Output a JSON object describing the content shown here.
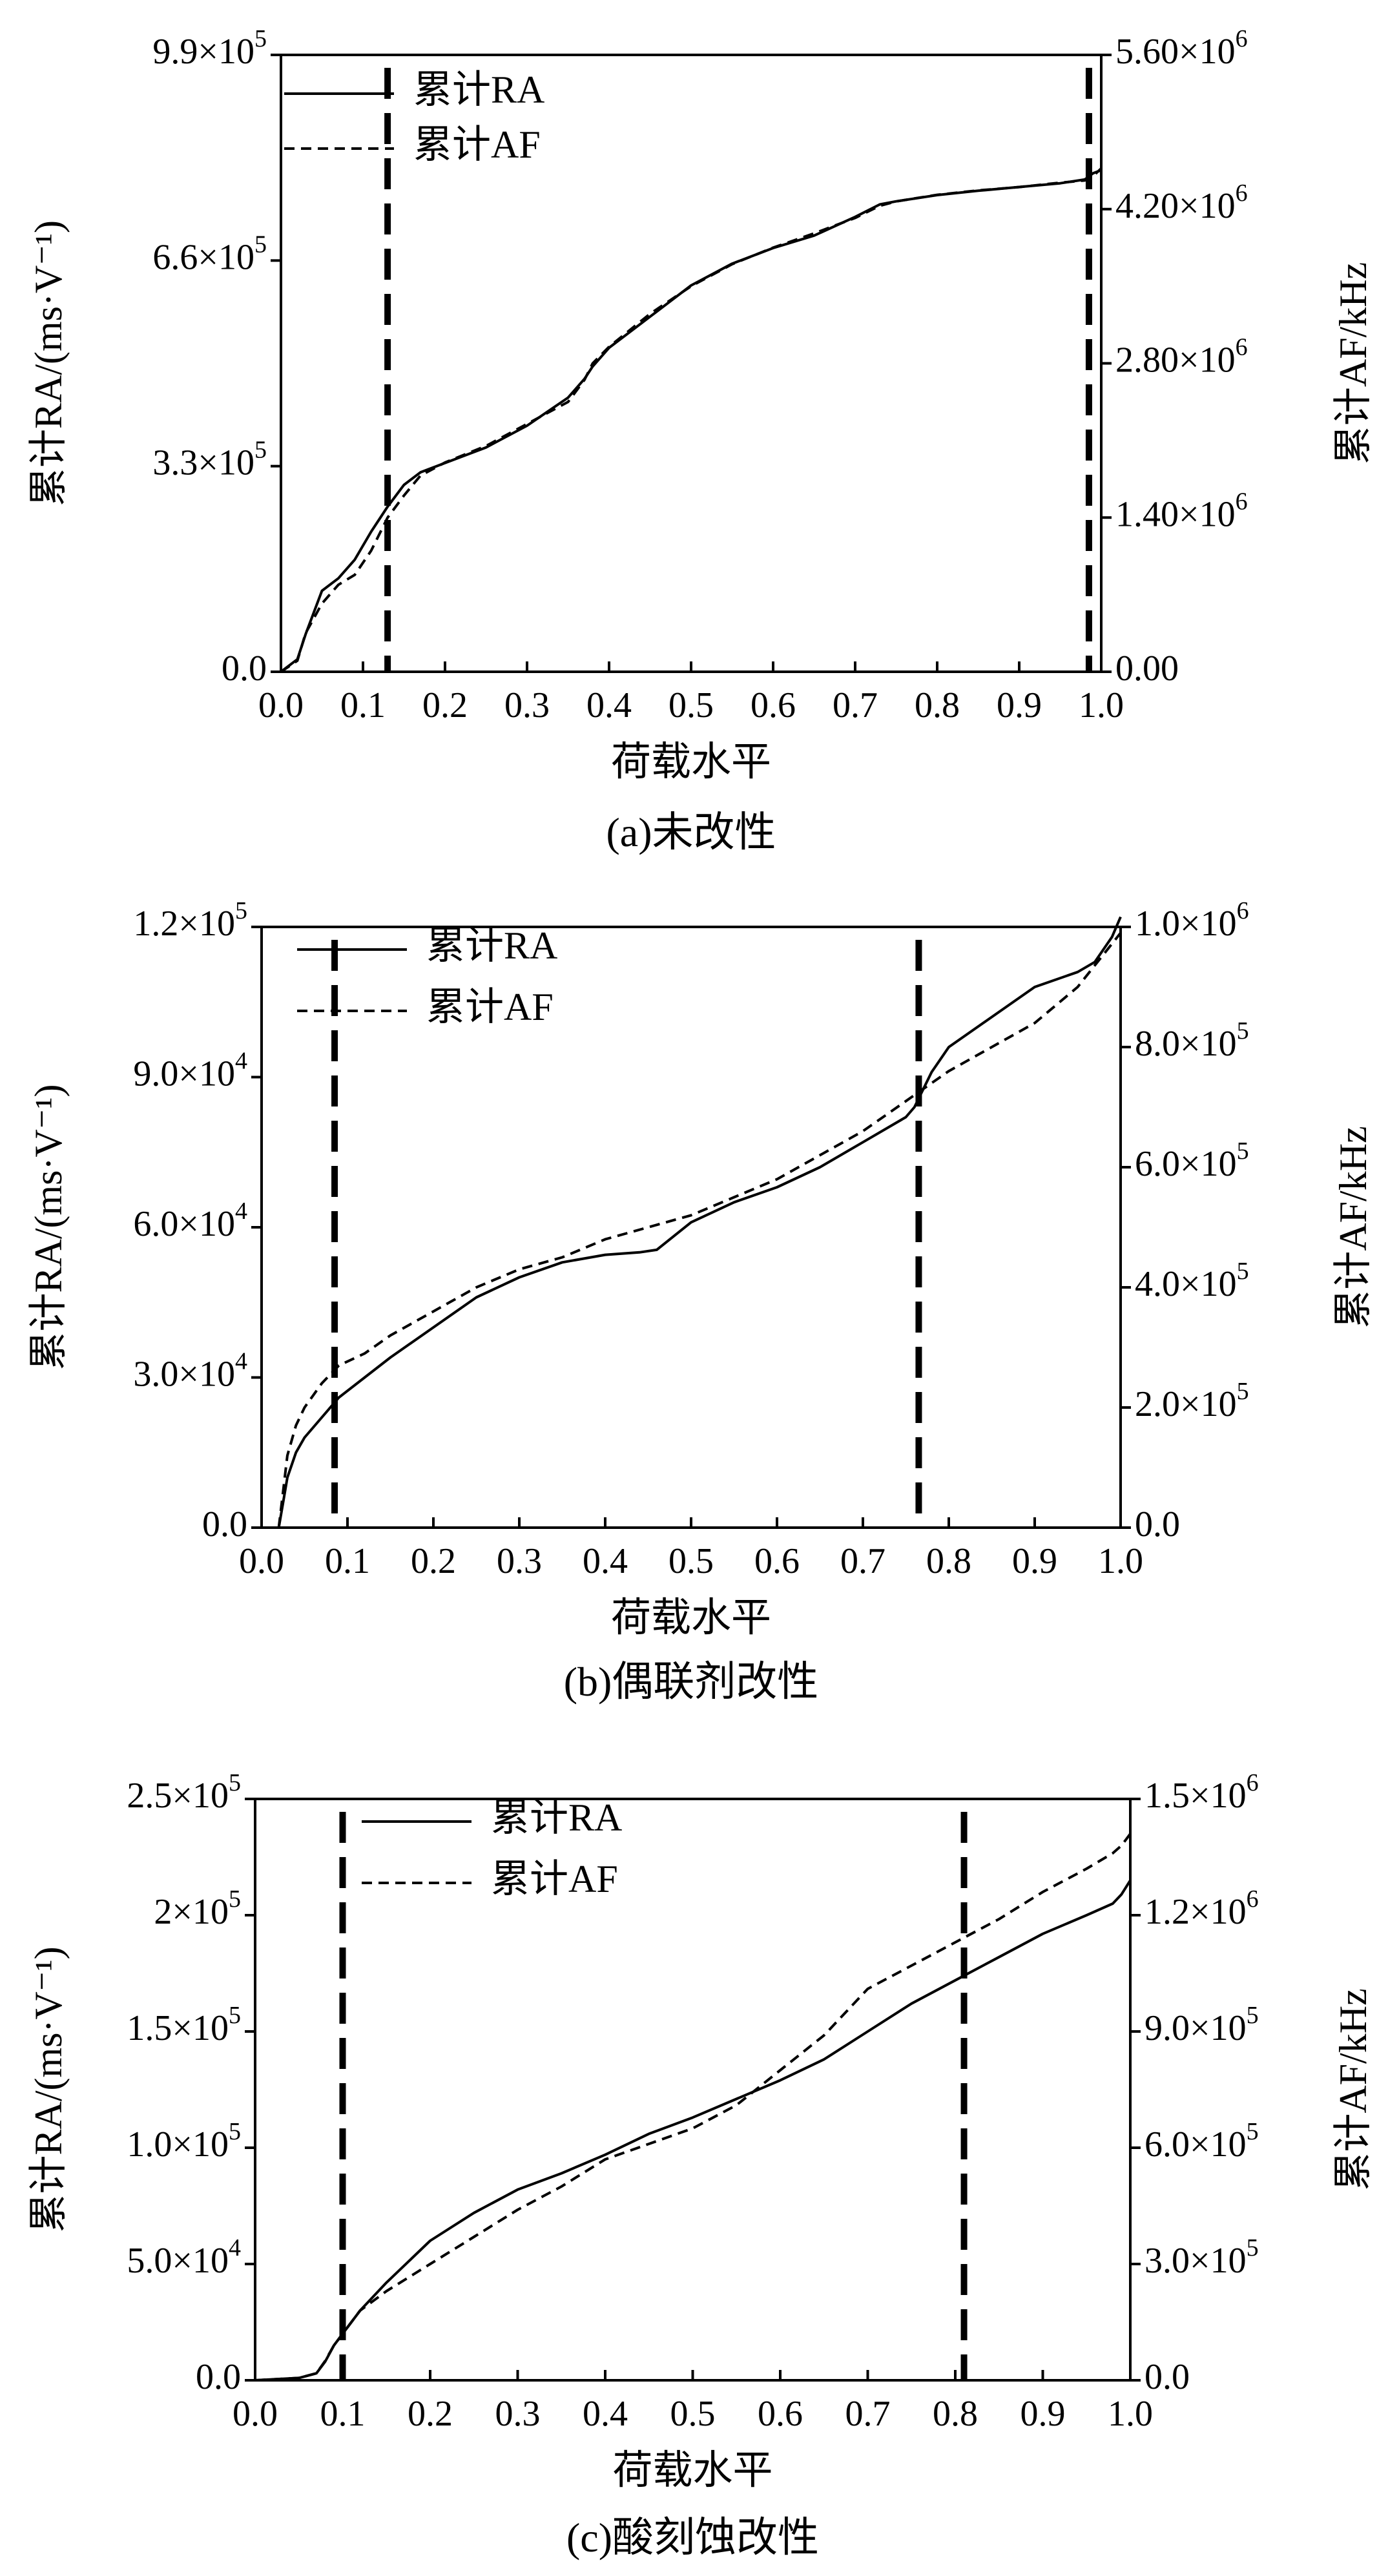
{
  "chart_data": [
    {
      "type": "line",
      "caption": "(a)未改性",
      "xlabel": "荷载水平",
      "ylabel": "累计RA/(ms·V⁻¹)",
      "y2label": "累计AF/kHz",
      "xlim": [
        0,
        1.0
      ],
      "ylim": [
        0,
        990000
      ],
      "y2lim": [
        0,
        5600000
      ],
      "xticks": [
        0.0,
        0.1,
        0.2,
        0.3,
        0.4,
        0.5,
        0.6,
        0.7,
        0.8,
        0.9,
        1.0
      ],
      "xtick_labels": [
        "0.0",
        "0.1",
        "0.2",
        "0.3",
        "0.4",
        "0.5",
        "0.6",
        "0.7",
        "0.8",
        "0.9",
        "1.0"
      ],
      "yticks": [
        0,
        330000,
        660000,
        990000
      ],
      "ytick_labels": [
        {
          "base": "0.0",
          "exp": ""
        },
        {
          "base": "3.3×10",
          "exp": "5"
        },
        {
          "base": "6.6×10",
          "exp": "5"
        },
        {
          "base": "9.9×10",
          "exp": "5"
        }
      ],
      "y2ticks": [
        0,
        1400000,
        2800000,
        4200000,
        5600000
      ],
      "y2tick_labels": [
        {
          "base": "0.00",
          "exp": ""
        },
        {
          "base": "1.40×10",
          "exp": "6"
        },
        {
          "base": "2.80×10",
          "exp": "6"
        },
        {
          "base": "4.20×10",
          "exp": "6"
        },
        {
          "base": "5.60×10",
          "exp": "6"
        }
      ],
      "vlines": [
        0.13,
        0.985
      ],
      "legend_position": "top-left",
      "series": [
        {
          "name": "累计RA",
          "axis": "left",
          "style": "solid",
          "x": [
            0.0,
            0.02,
            0.03,
            0.05,
            0.07,
            0.09,
            0.11,
            0.13,
            0.15,
            0.17,
            0.2,
            0.25,
            0.3,
            0.35,
            0.37,
            0.38,
            0.4,
            0.45,
            0.5,
            0.55,
            0.6,
            0.65,
            0.7,
            0.73,
            0.75,
            0.8,
            0.85,
            0.9,
            0.95,
            0.98,
            0.99,
            1.0
          ],
          "y": [
            0,
            20000,
            60000,
            130000,
            150000,
            180000,
            225000,
            265000,
            300000,
            320000,
            335000,
            360000,
            395000,
            440000,
            470000,
            490000,
            520000,
            570000,
            620000,
            655000,
            680000,
            700000,
            730000,
            750000,
            755000,
            765000,
            772000,
            778000,
            784000,
            790000,
            800000,
            805000
          ]
        },
        {
          "name": "累计AF",
          "axis": "right",
          "style": "dashed",
          "x": [
            0.0,
            0.02,
            0.03,
            0.05,
            0.07,
            0.09,
            0.11,
            0.13,
            0.15,
            0.17,
            0.2,
            0.25,
            0.3,
            0.35,
            0.37,
            0.38,
            0.4,
            0.45,
            0.5,
            0.55,
            0.6,
            0.65,
            0.7,
            0.73,
            0.75,
            0.8,
            0.85,
            0.9,
            0.95,
            0.98,
            0.99,
            1.0
          ],
          "y": [
            0,
            100000,
            350000,
            620000,
            790000,
            880000,
            1100000,
            1400000,
            1600000,
            1780000,
            1900000,
            2050000,
            2250000,
            2450000,
            2650000,
            2800000,
            2950000,
            3250000,
            3500000,
            3700000,
            3850000,
            3980000,
            4120000,
            4230000,
            4270000,
            4330000,
            4370000,
            4400000,
            4440000,
            4460000,
            4500000,
            4570000
          ]
        }
      ]
    },
    {
      "type": "line",
      "caption": "(b)偶联剂改性",
      "xlabel": "荷载水平",
      "ylabel": "累计RA/(ms·V⁻¹)",
      "y2label": "累计AF/kHz",
      "xlim": [
        0,
        1.0
      ],
      "ylim": [
        0,
        120000
      ],
      "y2lim": [
        0,
        1000000
      ],
      "xticks": [
        0.0,
        0.1,
        0.2,
        0.3,
        0.4,
        0.5,
        0.6,
        0.7,
        0.8,
        0.9,
        1.0
      ],
      "xtick_labels": [
        "0.0",
        "0.1",
        "0.2",
        "0.3",
        "0.4",
        "0.5",
        "0.6",
        "0.7",
        "0.8",
        "0.9",
        "1.0"
      ],
      "yticks": [
        0,
        30000,
        60000,
        90000,
        120000
      ],
      "ytick_labels": [
        {
          "base": "0.0",
          "exp": ""
        },
        {
          "base": "3.0×10",
          "exp": "4"
        },
        {
          "base": "6.0×10",
          "exp": "4"
        },
        {
          "base": "9.0×10",
          "exp": "4"
        },
        {
          "base": "1.2×10",
          "exp": "5"
        }
      ],
      "y2ticks": [
        0,
        200000,
        400000,
        600000,
        800000,
        1000000
      ],
      "y2tick_labels": [
        {
          "base": "0.0",
          "exp": ""
        },
        {
          "base": "2.0×10",
          "exp": "5"
        },
        {
          "base": "4.0×10",
          "exp": "5"
        },
        {
          "base": "6.0×10",
          "exp": "5"
        },
        {
          "base": "8.0×10",
          "exp": "5"
        },
        {
          "base": "1.0×10",
          "exp": "6"
        }
      ],
      "vlines": [
        0.085,
        0.765
      ],
      "legend_position": "top-left",
      "series": [
        {
          "name": "累计RA",
          "axis": "left",
          "style": "solid",
          "x": [
            0.02,
            0.025,
            0.03,
            0.04,
            0.05,
            0.07,
            0.09,
            0.12,
            0.15,
            0.2,
            0.25,
            0.3,
            0.35,
            0.4,
            0.44,
            0.46,
            0.5,
            0.55,
            0.6,
            0.65,
            0.7,
            0.75,
            0.76,
            0.78,
            0.8,
            0.85,
            0.9,
            0.95,
            0.97,
            0.99,
            1.0
          ],
          "y": [
            0,
            5000,
            10000,
            15000,
            18000,
            22000,
            26000,
            30000,
            34000,
            40000,
            46000,
            50000,
            53000,
            54500,
            55000,
            55500,
            61000,
            65000,
            68000,
            72000,
            77000,
            82000,
            84000,
            91000,
            96000,
            102000,
            108000,
            111000,
            113000,
            118000,
            122000
          ]
        },
        {
          "name": "累计AF",
          "axis": "right",
          "style": "dashed",
          "x": [
            0.02,
            0.025,
            0.03,
            0.04,
            0.05,
            0.07,
            0.09,
            0.12,
            0.15,
            0.2,
            0.25,
            0.3,
            0.35,
            0.4,
            0.45,
            0.5,
            0.55,
            0.6,
            0.65,
            0.7,
            0.75,
            0.8,
            0.85,
            0.9,
            0.95,
            1.0
          ],
          "y": [
            0,
            60000,
            120000,
            170000,
            200000,
            240000,
            270000,
            290000,
            320000,
            360000,
            400000,
            430000,
            450000,
            480000,
            500000,
            520000,
            550000,
            580000,
            620000,
            660000,
            710000,
            760000,
            800000,
            840000,
            900000,
            990000
          ]
        }
      ]
    },
    {
      "type": "line",
      "caption": "(c)酸刻蚀改性",
      "xlabel": "荷载水平",
      "ylabel": "累计RA/(ms·V⁻¹)",
      "y2label": "累计AF/kHz",
      "xlim": [
        0,
        1.0
      ],
      "ylim": [
        0,
        250000
      ],
      "y2lim": [
        0,
        1500000
      ],
      "xticks": [
        0.0,
        0.1,
        0.2,
        0.3,
        0.4,
        0.5,
        0.6,
        0.7,
        0.8,
        0.9,
        1.0
      ],
      "xtick_labels": [
        "0.0",
        "0.1",
        "0.2",
        "0.3",
        "0.4",
        "0.5",
        "0.6",
        "0.7",
        "0.8",
        "0.9",
        "1.0"
      ],
      "yticks": [
        0,
        50000,
        100000,
        150000,
        200000,
        250000
      ],
      "ytick_labels": [
        {
          "base": "0.0",
          "exp": ""
        },
        {
          "base": "5.0×10",
          "exp": "4"
        },
        {
          "base": "1.0×10",
          "exp": "5"
        },
        {
          "base": "1.5×10",
          "exp": "5"
        },
        {
          "base": "2×10",
          "exp": "5"
        },
        {
          "base": "2.5×10",
          "exp": "5"
        }
      ],
      "y2ticks": [
        0,
        300000,
        600000,
        900000,
        1200000,
        1500000
      ],
      "y2tick_labels": [
        {
          "base": "0.0",
          "exp": ""
        },
        {
          "base": "3.0×10",
          "exp": "5"
        },
        {
          "base": "6.0×10",
          "exp": "5"
        },
        {
          "base": "9.0×10",
          "exp": "5"
        },
        {
          "base": "1.2×10",
          "exp": "6"
        },
        {
          "base": "1.5×10",
          "exp": "6"
        }
      ],
      "vlines": [
        0.1,
        0.81
      ],
      "legend_position": "top-center",
      "series": [
        {
          "name": "累计RA",
          "axis": "left",
          "style": "solid",
          "x": [
            0.0,
            0.05,
            0.07,
            0.08,
            0.09,
            0.1,
            0.12,
            0.15,
            0.2,
            0.25,
            0.3,
            0.35,
            0.4,
            0.45,
            0.5,
            0.55,
            0.6,
            0.65,
            0.7,
            0.75,
            0.8,
            0.85,
            0.9,
            0.95,
            0.98,
            0.99,
            1.0
          ],
          "y": [
            0,
            1000,
            3000,
            8000,
            15000,
            20000,
            30000,
            42000,
            60000,
            72000,
            82000,
            89000,
            97000,
            106000,
            113000,
            121000,
            129000,
            138000,
            150000,
            162000,
            172000,
            182000,
            192000,
            200000,
            205000,
            209000,
            215000
          ]
        },
        {
          "name": "累计AF",
          "axis": "right",
          "style": "dashed",
          "x": [
            0.0,
            0.05,
            0.07,
            0.08,
            0.09,
            0.1,
            0.12,
            0.15,
            0.2,
            0.25,
            0.3,
            0.35,
            0.4,
            0.45,
            0.5,
            0.55,
            0.6,
            0.65,
            0.7,
            0.75,
            0.8,
            0.85,
            0.9,
            0.95,
            0.98,
            0.99,
            1.0
          ],
          "y": [
            0,
            6000,
            18000,
            50000,
            90000,
            120000,
            180000,
            230000,
            300000,
            370000,
            440000,
            500000,
            570000,
            610000,
            650000,
            710000,
            800000,
            890000,
            1010000,
            1070000,
            1130000,
            1190000,
            1260000,
            1320000,
            1360000,
            1380000,
            1410000
          ]
        }
      ]
    }
  ]
}
